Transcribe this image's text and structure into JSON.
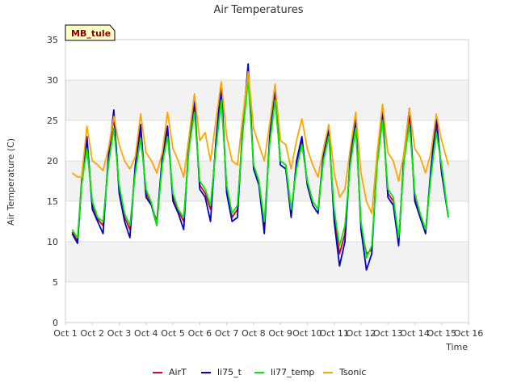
{
  "chart_data": {
    "type": "line",
    "title": "Air Temperatures",
    "xlabel": "Time",
    "ylabel": "Air Temperature (C)",
    "site_label": "MB_tule",
    "xlim": [
      1,
      16
    ],
    "ylim": [
      0,
      35
    ],
    "y_ticks": [
      0,
      5,
      10,
      15,
      20,
      25,
      30,
      35
    ],
    "x_ticks": [
      {
        "value": 1,
        "label": "Oct 1"
      },
      {
        "value": 2,
        "label": "Oct 2"
      },
      {
        "value": 3,
        "label": "Oct 3"
      },
      {
        "value": 4,
        "label": "Oct 4"
      },
      {
        "value": 5,
        "label": "Oct 5"
      },
      {
        "value": 6,
        "label": "Oct 6"
      },
      {
        "value": 7,
        "label": "Oct 7"
      },
      {
        "value": 8,
        "label": "Oct 8"
      },
      {
        "value": 9,
        "label": "Oct 9"
      },
      {
        "value": 10,
        "label": "Oct 10"
      },
      {
        "value": 11,
        "label": "Oct 11"
      },
      {
        "value": 12,
        "label": "Oct 12"
      },
      {
        "value": 13,
        "label": "Oct 13"
      },
      {
        "value": 14,
        "label": "Oct 14"
      },
      {
        "value": 15,
        "label": "Oct 15"
      },
      {
        "value": 16,
        "label": "Oct 16"
      }
    ],
    "band_color": "#f2f2f2",
    "grid_color": "#dddddd",
    "legend_position": "bottom",
    "series": [
      {
        "name": "AirT",
        "color": "#e0001b",
        "x": [
          1.25,
          1.45,
          1.6,
          1.8,
          2.0,
          2.2,
          2.4,
          2.6,
          2.8,
          3.0,
          3.2,
          3.4,
          3.6,
          3.8,
          4.0,
          4.2,
          4.4,
          4.6,
          4.8,
          5.0,
          5.2,
          5.4,
          5.6,
          5.8,
          6.0,
          6.2,
          6.4,
          6.6,
          6.8,
          7.0,
          7.2,
          7.4,
          7.6,
          7.8,
          8.0,
          8.2,
          8.4,
          8.6,
          8.8,
          9.0,
          9.2,
          9.4,
          9.6,
          9.8,
          10.0,
          10.2,
          10.4,
          10.6,
          10.8,
          11.0,
          11.2,
          11.4,
          11.6,
          11.8,
          12.0,
          12.2,
          12.4,
          12.6,
          12.8,
          13.0,
          13.2,
          13.4,
          13.6,
          13.8,
          14.0,
          14.2,
          14.4,
          14.6,
          14.8,
          15.0,
          15.25
        ],
        "y": [
          11.2,
          10.1,
          17.5,
          22.5,
          14.5,
          12.8,
          12.0,
          20.0,
          25.5,
          16.5,
          13.0,
          11.5,
          19.0,
          23.8,
          16.0,
          14.5,
          12.5,
          20.0,
          23.8,
          15.5,
          13.8,
          12.5,
          22.0,
          26.5,
          17.0,
          16.0,
          14.0,
          22.0,
          28.5,
          16.5,
          13.0,
          14.0,
          24.0,
          31.5,
          19.5,
          17.5,
          12.0,
          22.5,
          28.5,
          20.0,
          19.5,
          13.5,
          19.5,
          22.5,
          17.5,
          15.0,
          14.0,
          20.5,
          23.5,
          13.5,
          8.5,
          11.0,
          20.0,
          25.0,
          12.0,
          8.5,
          9.0,
          20.0,
          25.5,
          16.0,
          15.0,
          10.0,
          20.5,
          25.8,
          15.5,
          13.5,
          11.0,
          18.5,
          24.5,
          19.0,
          13.0
        ]
      },
      {
        "name": "li75_t",
        "color": "#0000cc",
        "x": [
          1.25,
          1.45,
          1.6,
          1.8,
          2.0,
          2.2,
          2.4,
          2.6,
          2.8,
          3.0,
          3.2,
          3.4,
          3.6,
          3.8,
          4.0,
          4.2,
          4.4,
          4.6,
          4.8,
          5.0,
          5.2,
          5.4,
          5.6,
          5.8,
          6.0,
          6.2,
          6.4,
          6.6,
          6.8,
          7.0,
          7.2,
          7.4,
          7.6,
          7.8,
          8.0,
          8.2,
          8.4,
          8.6,
          8.8,
          9.0,
          9.2,
          9.4,
          9.6,
          9.8,
          10.0,
          10.2,
          10.4,
          10.6,
          10.8,
          11.0,
          11.2,
          11.4,
          11.6,
          11.8,
          12.0,
          12.2,
          12.4,
          12.6,
          12.8,
          13.0,
          13.2,
          13.4,
          13.6,
          13.8,
          14.0,
          14.2,
          14.4,
          14.6,
          14.8,
          15.0,
          15.25
        ],
        "y": [
          11.0,
          9.8,
          17.0,
          23.0,
          14.0,
          12.5,
          11.0,
          20.5,
          26.3,
          16.0,
          12.5,
          10.5,
          19.5,
          24.5,
          15.5,
          14.5,
          12.0,
          20.5,
          24.3,
          15.0,
          13.5,
          11.5,
          22.5,
          27.5,
          16.5,
          15.5,
          12.5,
          22.5,
          29.5,
          16.0,
          12.5,
          13.0,
          24.5,
          32.0,
          19.0,
          17.0,
          11.0,
          23.0,
          29.0,
          19.5,
          19.0,
          13.0,
          20.0,
          23.0,
          17.0,
          14.5,
          13.5,
          21.0,
          24.0,
          12.5,
          7.0,
          10.0,
          20.5,
          25.5,
          11.5,
          6.5,
          8.5,
          20.5,
          26.5,
          15.5,
          14.5,
          9.5,
          21.0,
          26.5,
          15.0,
          13.0,
          11.0,
          19.0,
          25.5,
          18.5,
          13.0
        ]
      },
      {
        "name": "li77_temp",
        "color": "#00ee00",
        "x": [
          1.25,
          1.45,
          1.6,
          1.8,
          2.0,
          2.2,
          2.4,
          2.6,
          2.8,
          3.0,
          3.2,
          3.4,
          3.6,
          3.8,
          4.0,
          4.2,
          4.4,
          4.6,
          4.8,
          5.0,
          5.2,
          5.4,
          5.6,
          5.8,
          6.0,
          6.2,
          6.4,
          6.6,
          6.8,
          7.0,
          7.2,
          7.4,
          7.6,
          7.8,
          8.0,
          8.2,
          8.4,
          8.6,
          8.8,
          9.0,
          9.2,
          9.4,
          9.6,
          9.8,
          10.0,
          10.2,
          10.4,
          10.6,
          10.8,
          11.0,
          11.2,
          11.4,
          11.6,
          11.8,
          12.0,
          12.2,
          12.4,
          12.6,
          12.8,
          13.0,
          13.2,
          13.4,
          13.6,
          13.8,
          14.0,
          14.2,
          14.4,
          14.6,
          14.8,
          15.0,
          15.25
        ],
        "y": [
          11.5,
          10.5,
          17.0,
          21.5,
          15.0,
          13.0,
          12.5,
          19.5,
          24.0,
          17.0,
          13.5,
          12.0,
          18.5,
          22.8,
          16.5,
          14.8,
          12.0,
          19.5,
          23.0,
          16.0,
          14.0,
          13.0,
          21.5,
          26.0,
          17.5,
          16.5,
          14.5,
          21.5,
          27.5,
          17.0,
          13.5,
          14.5,
          23.5,
          30.0,
          19.5,
          17.5,
          12.5,
          22.0,
          27.5,
          20.0,
          19.5,
          14.0,
          19.0,
          22.0,
          17.5,
          15.0,
          14.0,
          20.0,
          23.0,
          14.0,
          9.5,
          12.0,
          19.5,
          24.0,
          12.5,
          8.0,
          9.5,
          19.5,
          25.0,
          16.5,
          15.5,
          10.5,
          20.0,
          24.5,
          16.0,
          13.5,
          11.5,
          18.0,
          23.5,
          19.5,
          13.0
        ]
      },
      {
        "name": "Tsonic",
        "color": "#ffa500",
        "x": [
          1.25,
          1.45,
          1.6,
          1.8,
          2.0,
          2.2,
          2.4,
          2.6,
          2.8,
          3.0,
          3.2,
          3.4,
          3.6,
          3.8,
          4.0,
          4.2,
          4.4,
          4.6,
          4.8,
          5.0,
          5.2,
          5.4,
          5.6,
          5.8,
          6.0,
          6.2,
          6.4,
          6.6,
          6.8,
          7.0,
          7.2,
          7.4,
          7.6,
          7.8,
          8.0,
          8.2,
          8.4,
          8.6,
          8.8,
          9.0,
          9.2,
          9.4,
          9.6,
          9.8,
          10.0,
          10.2,
          10.4,
          10.6,
          10.8,
          11.0,
          11.2,
          11.4,
          11.6,
          11.8,
          12.0,
          12.2,
          12.4,
          12.6,
          12.8,
          13.0,
          13.2,
          13.4,
          13.6,
          13.8,
          14.0,
          14.2,
          14.4,
          14.6,
          14.8,
          15.0,
          15.25
        ],
        "y": [
          18.5,
          18.0,
          18.0,
          24.3,
          20.0,
          19.5,
          18.8,
          21.5,
          25.5,
          22.0,
          20.0,
          19.0,
          20.5,
          25.8,
          21.0,
          20.0,
          18.5,
          21.0,
          26.0,
          21.5,
          20.0,
          18.0,
          23.0,
          28.3,
          22.5,
          23.5,
          20.0,
          25.0,
          29.8,
          23.0,
          20.0,
          19.5,
          25.5,
          31.0,
          24.0,
          22.0,
          20.0,
          24.5,
          29.5,
          22.5,
          22.0,
          19.0,
          22.5,
          25.2,
          21.5,
          19.5,
          18.0,
          21.5,
          24.5,
          18.5,
          15.5,
          16.5,
          21.5,
          26.0,
          18.5,
          15.0,
          13.5,
          21.0,
          27.0,
          21.0,
          20.0,
          17.5,
          21.0,
          26.5,
          21.5,
          20.5,
          18.5,
          21.0,
          25.8,
          22.5,
          19.5
        ]
      }
    ]
  }
}
